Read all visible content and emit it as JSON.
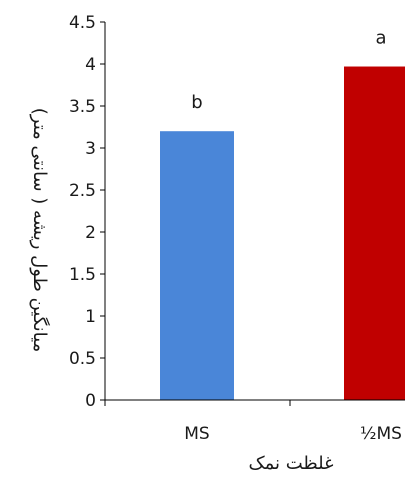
{
  "chart_data": {
    "type": "bar",
    "categories": [
      "MS",
      "½MS"
    ],
    "values": [
      3.2,
      3.97
    ],
    "significance_letters": [
      "b",
      "a"
    ],
    "colors": [
      "#4a86d8",
      "#c00000"
    ],
    "ylim": [
      0,
      4.5
    ],
    "yticks": [
      0,
      0.5,
      1,
      1.5,
      2,
      2.5,
      3,
      3.5,
      4,
      4.5
    ],
    "ytick_labels": [
      "0",
      "0.5",
      "1",
      "1.5",
      "2",
      "2.5",
      "3",
      "3.5",
      "4",
      "4.5"
    ],
    "xlabel": "غلظت نمک",
    "ylabel": "میانگین طول ریشه ( سانتی متر)",
    "title": "",
    "grid": false,
    "legend": "none"
  }
}
